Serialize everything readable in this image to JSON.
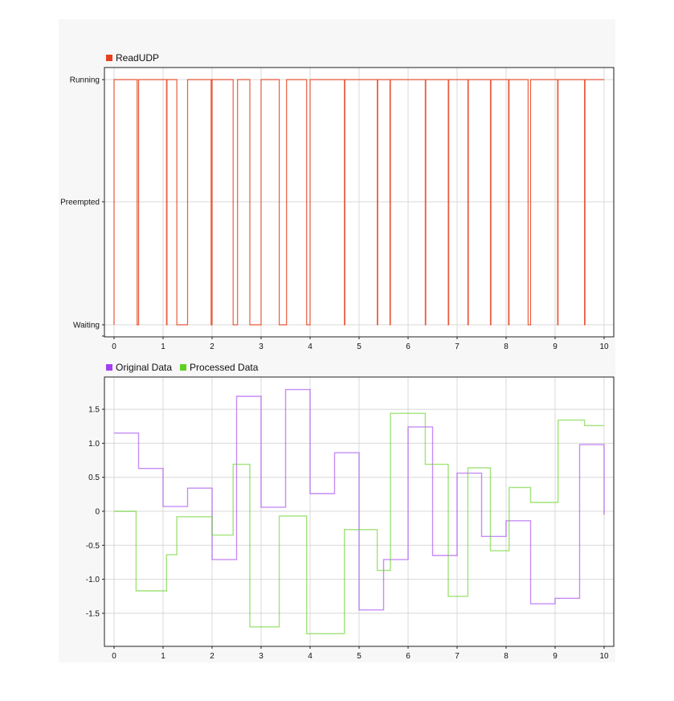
{
  "chart_data": [
    {
      "type": "line",
      "step": true,
      "legend": [
        {
          "name": "ReadUDP",
          "color": "#e8401c"
        }
      ],
      "xlim": [
        0,
        10
      ],
      "xticks": [
        0,
        1,
        2,
        3,
        4,
        5,
        6,
        7,
        8,
        9,
        10
      ],
      "y_categories": [
        "Waiting",
        "Preempted",
        "Running"
      ],
      "grid": true,
      "series": [
        {
          "name": "ReadUDP",
          "color": "#e8401c",
          "x": [
            0,
            0,
            0.47,
            0.47,
            0.5,
            0.5,
            1.07,
            1.07,
            1.08,
            1.08,
            1.28,
            1.28,
            1.5,
            1.5,
            1.98,
            1.98,
            2.0,
            2.0,
            2.43,
            2.43,
            2.52,
            2.52,
            2.77,
            2.77,
            3.0,
            3.0,
            3.37,
            3.37,
            3.52,
            3.52,
            3.93,
            3.93,
            4.0,
            4.0,
            4.7,
            4.7,
            4.71,
            4.71,
            5.37,
            5.37,
            5.38,
            5.38,
            5.63,
            5.63,
            5.64,
            5.64,
            6.35,
            6.35,
            6.36,
            6.36,
            6.82,
            6.82,
            6.83,
            6.83,
            7.22,
            7.22,
            7.23,
            7.23,
            7.68,
            7.68,
            7.69,
            7.69,
            8.05,
            8.05,
            8.06,
            8.06,
            8.45,
            8.45,
            8.5,
            8.5,
            9.05,
            9.05,
            9.06,
            9.06,
            9.6,
            9.6,
            9.61,
            9.61,
            10.0
          ],
          "y": [
            "Waiting",
            "Running",
            "Running",
            "Waiting",
            "Waiting",
            "Running",
            "Running",
            "Waiting",
            "Waiting",
            "Running",
            "Running",
            "Waiting",
            "Waiting",
            "Running",
            "Running",
            "Waiting",
            "Waiting",
            "Running",
            "Running",
            "Waiting",
            "Waiting",
            "Running",
            "Running",
            "Waiting",
            "Waiting",
            "Running",
            "Running",
            "Waiting",
            "Waiting",
            "Running",
            "Running",
            "Waiting",
            "Waiting",
            "Running",
            "Running",
            "Waiting",
            "Waiting",
            "Running",
            "Running",
            "Waiting",
            "Waiting",
            "Running",
            "Running",
            "Waiting",
            "Waiting",
            "Running",
            "Running",
            "Waiting",
            "Waiting",
            "Running",
            "Running",
            "Waiting",
            "Waiting",
            "Running",
            "Running",
            "Waiting",
            "Waiting",
            "Running",
            "Running",
            "Waiting",
            "Waiting",
            "Running",
            "Running",
            "Waiting",
            "Waiting",
            "Running",
            "Running",
            "Waiting",
            "Waiting",
            "Running",
            "Running",
            "Waiting",
            "Waiting",
            "Running",
            "Running",
            "Waiting",
            "Waiting",
            "Running",
            "Running"
          ]
        }
      ]
    },
    {
      "type": "line",
      "step": true,
      "legend": [
        {
          "name": "Original Data",
          "color": "#a040f0"
        },
        {
          "name": "Processed Data",
          "color": "#60d020"
        }
      ],
      "xlim": [
        0,
        10
      ],
      "ylim": [
        -2,
        2
      ],
      "xticks": [
        0,
        1,
        2,
        3,
        4,
        5,
        6,
        7,
        8,
        9,
        10
      ],
      "yticks": [
        1.5,
        1.0,
        0.5,
        0,
        -0.5,
        -1.0,
        -1.5
      ],
      "ytick_labels": [
        "1.5",
        "1.0",
        "0.5",
        "0",
        "-0.5",
        "-1.0",
        "-1.5"
      ],
      "grid": true,
      "series": [
        {
          "name": "Original Data",
          "color": "#a040f0",
          "x": [
            0,
            0.5,
            1.0,
            1.5,
            2.0,
            2.5,
            3.0,
            3.5,
            4.0,
            4.5,
            5.0,
            5.5,
            6.0,
            6.5,
            7.0,
            7.5,
            8.0,
            8.5,
            9.0,
            9.5,
            10.0
          ],
          "y": [
            1.15,
            0.63,
            0.07,
            0.34,
            -0.71,
            1.69,
            0.06,
            1.79,
            0.26,
            0.86,
            -1.45,
            -0.71,
            1.24,
            -0.65,
            0.56,
            -0.37,
            -0.14,
            -1.36,
            -1.28,
            0.98,
            -0.05
          ]
        },
        {
          "name": "Processed Data",
          "color": "#60d020",
          "x": [
            0,
            0.45,
            1.07,
            1.28,
            2.0,
            2.43,
            2.77,
            3.37,
            3.93,
            4.7,
            5.37,
            5.64,
            6.35,
            6.82,
            7.22,
            7.68,
            8.06,
            8.5,
            9.06,
            9.6,
            10.0
          ],
          "y": [
            0,
            -1.17,
            -0.64,
            -0.08,
            -0.35,
            0.69,
            -1.7,
            -0.07,
            -1.8,
            -0.27,
            -0.87,
            1.44,
            0.69,
            -1.25,
            0.64,
            -0.58,
            0.35,
            0.13,
            1.34,
            1.26,
            1.26
          ]
        }
      ]
    }
  ]
}
